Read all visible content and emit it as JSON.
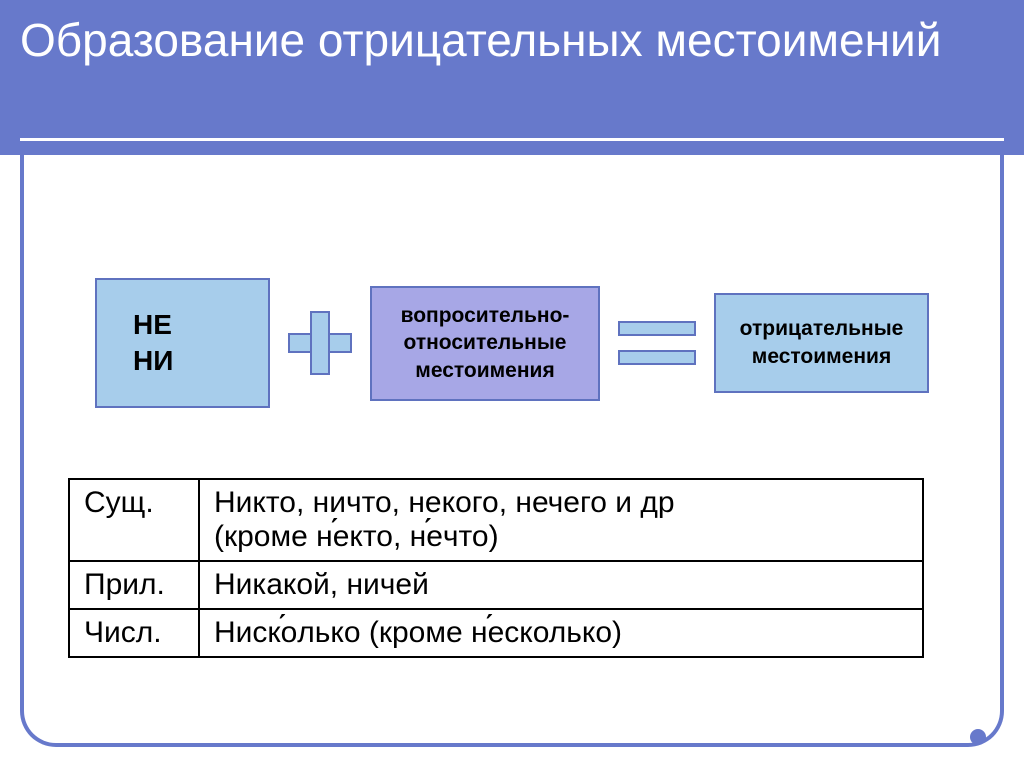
{
  "colors": {
    "title_bg": "#6779cb",
    "title_text": "#ffffff",
    "frame_border": "#6779cb",
    "box_border": "#5f72bf",
    "box_light_blue": "#a7cdeb",
    "box_purple": "#a7a7e6",
    "text_dark": "#000000",
    "bullet": "#6779cb"
  },
  "title": "Образование отрицательных местоимений",
  "diagram": {
    "prefix_box": "НЕ\nНИ",
    "middle_box": "вопросительно-относительные местоимения",
    "result_box": "отрицательные местоимения"
  },
  "table": {
    "rows": [
      {
        "label": "Сущ.",
        "text": "Никто, ничто, некого, нечего и др (кроме некто, нечто)",
        "accents": [
          "не́кто",
          "не́что"
        ]
      },
      {
        "label": "Прил.",
        "text": "Никакой, ничей"
      },
      {
        "label": "Числ.",
        "text": "Нисколько (кроме несколько)",
        "accents": [
          "Ниско́лько",
          "не́сколько"
        ]
      }
    ]
  }
}
